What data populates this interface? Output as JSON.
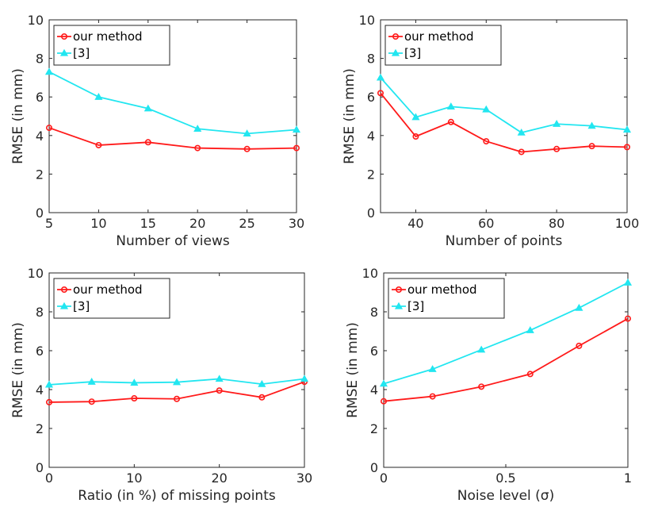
{
  "figure": {
    "title": ""
  },
  "colors": {
    "our_method": "#ff1a1a",
    "ref3": "#22e6f0",
    "axis": "#262626"
  },
  "chart_data": [
    {
      "type": "line",
      "id": "views",
      "xlabel": "Number of views",
      "ylabel": "RMSE (in mm)",
      "xlim": [
        5,
        30
      ],
      "ylim": [
        0,
        10
      ],
      "xticks": [
        5,
        10,
        15,
        20,
        25,
        30
      ],
      "xtick_labels": [
        "5",
        "10",
        "15",
        "20",
        "25",
        "30"
      ],
      "yticks": [
        0,
        2,
        4,
        6,
        8,
        10
      ],
      "ytick_labels": [
        "0",
        "2",
        "4",
        "6",
        "8",
        "10"
      ],
      "legend_position": "top-left",
      "series": [
        {
          "name": "our method",
          "marker": "circle",
          "x": [
            5,
            10,
            15,
            20,
            25,
            30
          ],
          "y": [
            4.4,
            3.5,
            3.65,
            3.35,
            3.3,
            3.35
          ]
        },
        {
          "name": "[3]",
          "marker": "triangle",
          "x": [
            5,
            10,
            15,
            20,
            25,
            30
          ],
          "y": [
            7.3,
            6.0,
            5.4,
            4.35,
            4.1,
            4.3
          ]
        }
      ]
    },
    {
      "type": "line",
      "id": "points",
      "xlabel": "Number of points",
      "ylabel": "RMSE (in mm)",
      "xlim": [
        30,
        100
      ],
      "ylim": [
        0,
        10
      ],
      "xticks": [
        40,
        60,
        80,
        100
      ],
      "xtick_labels": [
        "40",
        "60",
        "80",
        "100"
      ],
      "yticks": [
        0,
        2,
        4,
        6,
        8,
        10
      ],
      "ytick_labels": [
        "0",
        "2",
        "4",
        "6",
        "8",
        "10"
      ],
      "legend_position": "top-left",
      "series": [
        {
          "name": "our method",
          "marker": "circle",
          "x": [
            30,
            40,
            50,
            60,
            70,
            80,
            90,
            100
          ],
          "y": [
            6.2,
            3.95,
            4.7,
            3.7,
            3.15,
            3.3,
            3.45,
            3.4
          ]
        },
        {
          "name": "[3]",
          "marker": "triangle",
          "x": [
            30,
            40,
            50,
            60,
            70,
            80,
            90,
            100
          ],
          "y": [
            7.0,
            4.95,
            5.5,
            5.35,
            4.15,
            4.6,
            4.5,
            4.3
          ]
        }
      ]
    },
    {
      "type": "line",
      "id": "missing",
      "xlabel": "Ratio (in %) of missing points",
      "ylabel": "RMSE (in mm)",
      "xlim": [
        0,
        30
      ],
      "ylim": [
        0,
        10
      ],
      "xticks": [
        0,
        10,
        20,
        30
      ],
      "xtick_labels": [
        "0",
        "10",
        "20",
        "30"
      ],
      "yticks": [
        0,
        2,
        4,
        6,
        8,
        10
      ],
      "ytick_labels": [
        "0",
        "2",
        "4",
        "6",
        "8",
        "10"
      ],
      "legend_position": "top-left",
      "series": [
        {
          "name": "our method",
          "marker": "circle",
          "x": [
            0,
            5,
            10,
            15,
            20,
            25,
            30
          ],
          "y": [
            3.35,
            3.38,
            3.55,
            3.52,
            3.95,
            3.6,
            4.4
          ]
        },
        {
          "name": "[3]",
          "marker": "triangle",
          "x": [
            0,
            5,
            10,
            15,
            20,
            25,
            30
          ],
          "y": [
            4.25,
            4.4,
            4.35,
            4.38,
            4.55,
            4.28,
            4.55
          ]
        }
      ]
    },
    {
      "type": "line",
      "id": "noise",
      "xlabel": "Noise level (σ)",
      "ylabel": "RMSE (in mm)",
      "xlim": [
        0,
        1
      ],
      "ylim": [
        0,
        10
      ],
      "xticks": [
        0,
        0.5,
        1
      ],
      "xtick_labels": [
        "0",
        "0.5",
        "1"
      ],
      "yticks": [
        0,
        2,
        4,
        6,
        8,
        10
      ],
      "ytick_labels": [
        "0",
        "2",
        "4",
        "6",
        "8",
        "10"
      ],
      "legend_position": "top-left",
      "series": [
        {
          "name": "our method",
          "marker": "circle",
          "x": [
            0,
            0.2,
            0.4,
            0.6,
            0.8,
            1.0
          ],
          "y": [
            3.4,
            3.65,
            4.15,
            4.8,
            6.25,
            7.65
          ]
        },
        {
          "name": "[3]",
          "marker": "triangle",
          "x": [
            0,
            0.2,
            0.4,
            0.6,
            0.8,
            1.0
          ],
          "y": [
            4.3,
            5.05,
            6.05,
            7.05,
            8.2,
            9.5
          ]
        }
      ]
    }
  ]
}
